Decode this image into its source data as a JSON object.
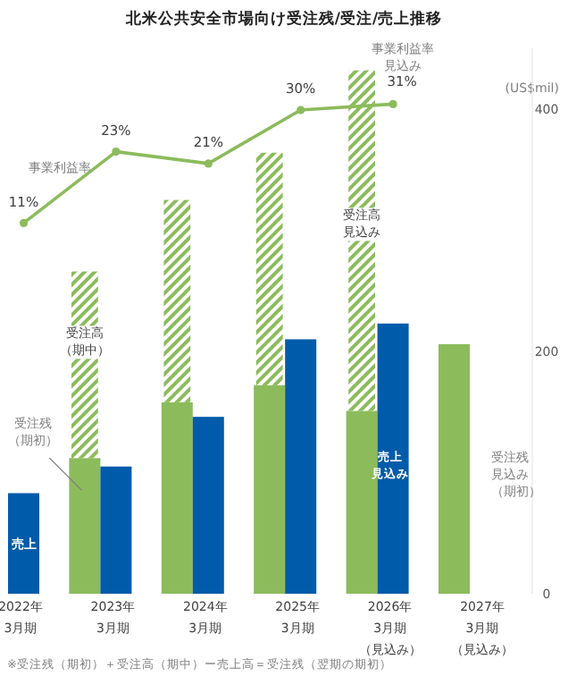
{
  "chart_data": {
    "type": "bar",
    "title": "北米公共安全市場向け受注残/受注/売上推移",
    "categories": [
      "2022年3月期",
      "2023年3月期",
      "2024年3月期",
      "2025年3月期",
      "2026年3月期（見込み）",
      "2027年3月期（見込み）"
    ],
    "marker": "circle",
    "series": [
      {
        "name": "受注残（期初）",
        "color": "#8cbb5c",
        "values": [
          null,
          112,
          158,
          172,
          151,
          206
        ]
      },
      {
        "name": "受注高（期中）",
        "color": "#8cbb5c",
        "base": [
          null,
          112,
          158,
          172,
          151,
          null
        ],
        "values": [
          null,
          154,
          167,
          192,
          281,
          null
        ]
      },
      {
        "name": "売上",
        "color": "#005baa",
        "values": [
          83,
          105,
          146,
          210,
          223,
          null
        ]
      },
      {
        "type": "line",
        "name": "事業利益率",
        "color": "#8cbb5c",
        "axis": "y2",
        "values": [
          11,
          23,
          21,
          30,
          31,
          null
        ],
        "value_labels": [
          "11%",
          "23%",
          "21%",
          "30%",
          "31%",
          null
        ]
      }
    ],
    "ylabel": "(US$mil)",
    "ylim": [
      0,
      450
    ],
    "yticks": [
      0,
      200,
      400
    ],
    "annotations": [
      "受注高見込み",
      "売上見込み",
      "受注残見込み（期初）",
      "事業利益率見込み",
      "※受注残（期初）＋受注高（期中）ー売上高＝受注残（翌期の期初）"
    ]
  }
}
